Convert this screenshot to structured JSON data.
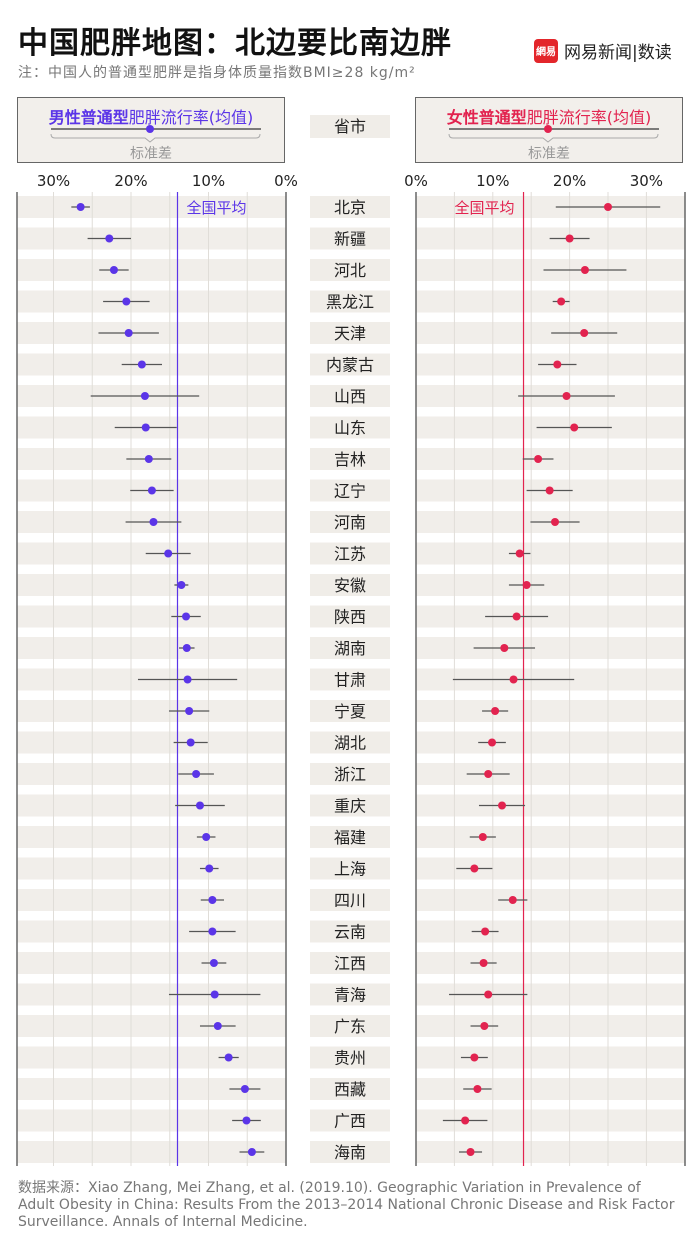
{
  "header": {
    "title": "中国肥胖地图：北边要比南边胖",
    "subtitle": "注：中国人的普通型肥胖是指身体质量指数BMI≥28 kg/m²",
    "logo_mark": "網易",
    "logo_text": "网易新闻|数读"
  },
  "legend_male": {
    "title_bold": "男性普通型",
    "title_rest": "肥胖流行率(均值)",
    "sd": "标准差"
  },
  "legend_female": {
    "title_bold": "女性普通型",
    "title_rest": "肥胖流行率(均值)",
    "sd": "标准差"
  },
  "province_header": "省市",
  "source": "数据来源：Xiao Zhang, Mei Zhang, et al. (2019.10). Geographic Variation in Prevalence of Adult Obesity in China: Results From the 2013–2014 National Chronic Disease and Risk Factor Surveillance. Annals of Internal Medicine.",
  "chart_data": {
    "type": "dot-errorbar",
    "categories": [
      "北京",
      "新疆",
      "河北",
      "黑龙江",
      "天津",
      "内蒙古",
      "山西",
      "山东",
      "吉林",
      "辽宁",
      "河南",
      "江苏",
      "安徽",
      "陕西",
      "湖南",
      "甘肃",
      "宁夏",
      "湖北",
      "浙江",
      "重庆",
      "福建",
      "上海",
      "四川",
      "云南",
      "江西",
      "青海",
      "广东",
      "贵州",
      "西藏",
      "广西",
      "海南"
    ],
    "tick_labels": [
      "0%",
      "10%",
      "20%",
      "30%"
    ],
    "xlim": [
      0,
      35
    ],
    "grid": true,
    "colors": {
      "male": "#5b35e8",
      "female": "#e2234f",
      "whisker": "#555555",
      "stripe": "#f1eeea"
    },
    "series": [
      {
        "name": "男性普通型肥胖流行率(均值)",
        "direction": "reversed",
        "national_average": 14.0,
        "national_average_label": "全国平均",
        "mean": [
          26.5,
          22.8,
          22.2,
          20.6,
          20.3,
          18.6,
          18.2,
          18.1,
          17.7,
          17.3,
          17.1,
          15.2,
          13.5,
          12.9,
          12.8,
          12.7,
          12.5,
          12.3,
          11.6,
          11.1,
          10.3,
          9.9,
          9.5,
          9.5,
          9.3,
          9.2,
          8.8,
          7.4,
          5.3,
          5.1,
          4.4
        ],
        "sd": [
          1.2,
          2.8,
          1.9,
          3.0,
          3.9,
          2.6,
          7.0,
          4.0,
          2.9,
          2.8,
          3.6,
          2.9,
          0.9,
          1.9,
          1.0,
          6.4,
          2.6,
          2.2,
          2.3,
          3.2,
          1.2,
          1.2,
          1.5,
          3.0,
          1.6,
          5.9,
          2.3,
          1.3,
          2.0,
          1.85,
          1.6
        ]
      },
      {
        "name": "女性普通型肥胖流行率(均值)",
        "direction": "normal",
        "national_average": 14.0,
        "national_average_label": "全国平均",
        "mean": [
          25.0,
          20.0,
          22.0,
          18.9,
          21.9,
          18.4,
          19.6,
          20.6,
          15.9,
          17.4,
          18.1,
          13.5,
          14.4,
          13.1,
          11.5,
          12.7,
          10.3,
          9.9,
          9.4,
          11.2,
          8.7,
          7.6,
          12.6,
          9.0,
          8.8,
          9.4,
          8.9,
          7.6,
          8.0,
          6.4,
          7.1
        ],
        "sd": [
          6.8,
          2.6,
          5.4,
          1.1,
          4.3,
          2.5,
          6.3,
          4.9,
          2.0,
          3.0,
          3.2,
          1.4,
          2.3,
          4.1,
          4.0,
          7.9,
          1.7,
          1.8,
          2.8,
          3.0,
          1.7,
          2.35,
          1.9,
          1.75,
          1.7,
          5.1,
          1.8,
          1.75,
          1.85,
          2.9,
          1.5
        ]
      }
    ]
  }
}
